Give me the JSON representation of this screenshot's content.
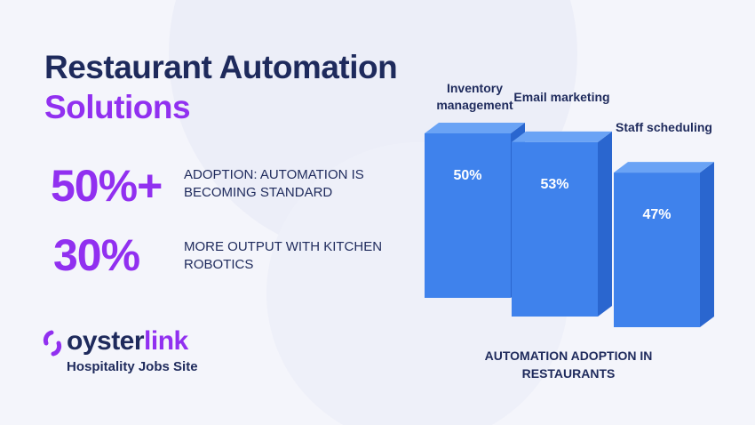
{
  "header": {
    "title_line1": "Restaurant Automation",
    "title_line2": "Solutions"
  },
  "stats": [
    {
      "value": "50%+",
      "text": "ADOPTION: AUTOMATION IS BECOMING STANDARD"
    },
    {
      "value": "30%",
      "text": "MORE OUTPUT WITH KITCHEN ROBOTICS"
    }
  ],
  "logo": {
    "word_start": "oyster",
    "word_end": "link",
    "tagline": "Hospitality Jobs Site"
  },
  "chart_data": {
    "type": "bar",
    "title": "AUTOMATION ADOPTION IN RESTAURANTS",
    "categories": [
      "Inventory management",
      "Email marketing",
      "Staff scheduling"
    ],
    "values": [
      50,
      53,
      47
    ],
    "value_labels": [
      "50%",
      "53%",
      "47%"
    ],
    "color": "#3f82ec"
  }
}
